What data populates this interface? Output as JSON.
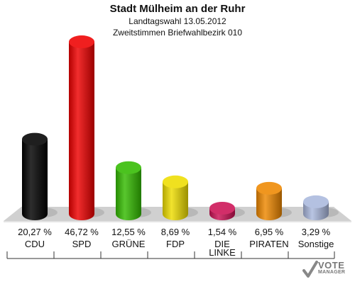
{
  "title": "Stadt Mülheim an der Ruhr",
  "subtitle1": "Landtagswahl 13.05.2012",
  "subtitle2": "Zweitstimmen Briefwahlbezirk 010",
  "logo": {
    "line1": "VOTE",
    "line2": "MANAGER"
  },
  "chart_data": {
    "type": "bar",
    "categories": [
      "CDU",
      "SPD",
      "GRÜNE",
      "FDP",
      "DIE LINKE",
      "PIRATEN",
      "Sonstige"
    ],
    "values": [
      20.27,
      46.72,
      12.55,
      8.69,
      1.54,
      6.95,
      3.29
    ],
    "value_labels": [
      "20,27 %",
      "46,72 %",
      "12,55 %",
      "8,69 %",
      "1,54 %",
      "6,95 %",
      "3,29 %"
    ],
    "colors": [
      "#000000",
      "#ee0000",
      "#33bb00",
      "#eedd00",
      "#cc1155",
      "#ee8800",
      "#aab8dd"
    ],
    "ylim": [
      0,
      50
    ]
  }
}
